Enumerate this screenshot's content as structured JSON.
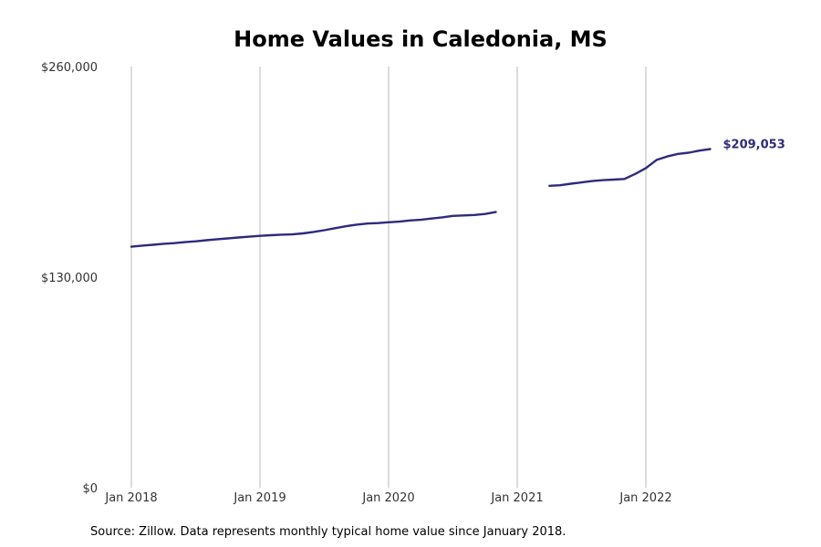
{
  "chart_data": {
    "type": "line",
    "title": "Home Values in Caledonia, MS",
    "xlabel": "",
    "ylabel": "",
    "ylim": [
      0,
      260000
    ],
    "yticks": [
      {
        "value": 0,
        "label": "$0"
      },
      {
        "value": 130000,
        "label": "$130,000"
      },
      {
        "value": 260000,
        "label": "$260,000"
      }
    ],
    "xticks": [
      {
        "value": "2018-01",
        "label": "Jan 2018"
      },
      {
        "value": "2019-01",
        "label": "Jan 2019"
      },
      {
        "value": "2020-01",
        "label": "Jan 2020"
      },
      {
        "value": "2021-01",
        "label": "Jan 2021"
      },
      {
        "value": "2022-01",
        "label": "Jan 2022"
      }
    ],
    "grid": {
      "vertical": true,
      "horizontal": false
    },
    "series": [
      {
        "color": "#2e2a7e",
        "points": [
          [
            "2018-01",
            148800
          ],
          [
            "2018-02",
            149500
          ],
          [
            "2018-03",
            150000
          ],
          [
            "2018-04",
            150600
          ],
          [
            "2018-05",
            151000
          ],
          [
            "2018-06",
            151600
          ],
          [
            "2018-07",
            152100
          ],
          [
            "2018-08",
            152800
          ],
          [
            "2018-09",
            153400
          ],
          [
            "2018-10",
            153900
          ],
          [
            "2018-11",
            154500
          ],
          [
            "2018-12",
            155000
          ],
          [
            "2019-01",
            155500
          ],
          [
            "2019-02",
            155900
          ],
          [
            "2019-03",
            156200
          ],
          [
            "2019-04",
            156400
          ],
          [
            "2019-05",
            157000
          ],
          [
            "2019-06",
            157900
          ],
          [
            "2019-07",
            159000
          ],
          [
            "2019-08",
            160200
          ],
          [
            "2019-09",
            161400
          ],
          [
            "2019-10",
            162400
          ],
          [
            "2019-11",
            163100
          ],
          [
            "2019-12",
            163400
          ],
          [
            "2020-01",
            163900
          ],
          [
            "2020-02",
            164300
          ],
          [
            "2020-03",
            165000
          ],
          [
            "2020-04",
            165400
          ],
          [
            "2020-05",
            166200
          ],
          [
            "2020-06",
            166900
          ],
          [
            "2020-07",
            167800
          ],
          [
            "2020-08",
            168100
          ],
          [
            "2020-09",
            168400
          ],
          [
            "2020-10",
            169000
          ],
          [
            "2020-11",
            170200
          ],
          [
            "2021-01",
            null
          ],
          [
            "2021-02",
            null
          ],
          [
            "2021-03",
            null
          ],
          [
            "2021-04",
            186400
          ],
          [
            "2021-05",
            186700
          ],
          [
            "2021-06",
            187700
          ],
          [
            "2021-07",
            188500
          ],
          [
            "2021-08",
            189300
          ],
          [
            "2021-09",
            189900
          ],
          [
            "2021-10",
            190200
          ],
          [
            "2021-11",
            190600
          ],
          [
            "2021-12",
            193700
          ],
          [
            "2022-01",
            197300
          ],
          [
            "2022-02",
            202400
          ],
          [
            "2022-03",
            204500
          ],
          [
            "2022-04",
            206100
          ],
          [
            "2022-05",
            206800
          ],
          [
            "2022-06",
            208100
          ],
          [
            "2022-07",
            209053
          ]
        ],
        "end_label": "$209,053"
      }
    ],
    "source": "Source: Zillow. Data represents monthly typical home value since January 2018."
  }
}
